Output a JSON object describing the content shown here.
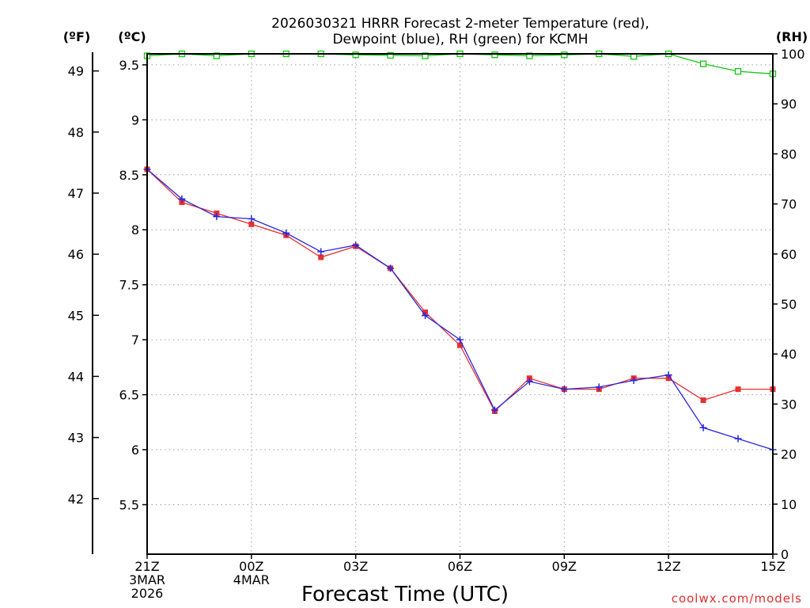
{
  "chart_data": {
    "type": "line",
    "title_line1": "2026030321 HRRR Forecast 2-meter Temperature (red),",
    "title_line2": "Dewpoint (blue), RH (green) for KCMH",
    "xlabel": "Forecast Time (UTC)",
    "credit": "coolwx.com/models",
    "unit_left_f": "(ºF)",
    "unit_left_c": "(ºC)",
    "unit_right": "(RH)",
    "x_hours": [
      0,
      1,
      2,
      3,
      4,
      5,
      6,
      7,
      8,
      9,
      10,
      11,
      12,
      13,
      14,
      15,
      16,
      17,
      18
    ],
    "x_ticks": [
      {
        "hour": 0,
        "lines": [
          "21Z",
          "3MAR",
          "2026"
        ]
      },
      {
        "hour": 3,
        "lines": [
          "00Z",
          "4MAR"
        ]
      },
      {
        "hour": 6,
        "lines": [
          "03Z"
        ]
      },
      {
        "hour": 9,
        "lines": [
          "06Z"
        ]
      },
      {
        "hour": 12,
        "lines": [
          "09Z"
        ]
      },
      {
        "hour": 15,
        "lines": [
          "12Z"
        ]
      },
      {
        "hour": 18,
        "lines": [
          "15Z"
        ]
      }
    ],
    "xlim": [
      0,
      18
    ],
    "ylim_c": [
      5.05,
      9.6
    ],
    "yticks_c": [
      "5.5",
      "6",
      "6.5",
      "7",
      "7.5",
      "8",
      "8.5",
      "9",
      "9.5"
    ],
    "yticks_f": [
      "42",
      "43",
      "44",
      "45",
      "46",
      "47",
      "48",
      "49"
    ],
    "ylim_rh": [
      0,
      100
    ],
    "yticks_rh": [
      "0",
      "10",
      "20",
      "30",
      "40",
      "50",
      "60",
      "70",
      "80",
      "90",
      "100"
    ],
    "series": [
      {
        "name": "Temperature",
        "color": "#e83030",
        "marker": "filled-square",
        "values": [
          8.55,
          8.25,
          8.15,
          8.05,
          7.95,
          7.75,
          7.85,
          7.65,
          7.25,
          6.95,
          6.35,
          6.65,
          6.55,
          6.55,
          6.65,
          6.65,
          6.45,
          6.55,
          6.55
        ]
      },
      {
        "name": "Dewpoint",
        "color": "#2828e0",
        "marker": "plus",
        "values": [
          8.55,
          8.28,
          8.12,
          8.1,
          7.97,
          7.8,
          7.86,
          7.65,
          7.22,
          7.0,
          6.36,
          6.62,
          6.55,
          6.57,
          6.63,
          6.68,
          6.2,
          6.1,
          6.0
        ]
      },
      {
        "name": "RH",
        "color": "#10c810",
        "marker": "open-square",
        "axis": "right",
        "values": [
          99.6,
          100,
          99.6,
          100,
          100,
          100,
          99.8,
          99.7,
          99.6,
          100,
          99.8,
          99.6,
          99.8,
          100,
          99.5,
          100,
          98,
          96.5,
          96
        ]
      }
    ]
  }
}
